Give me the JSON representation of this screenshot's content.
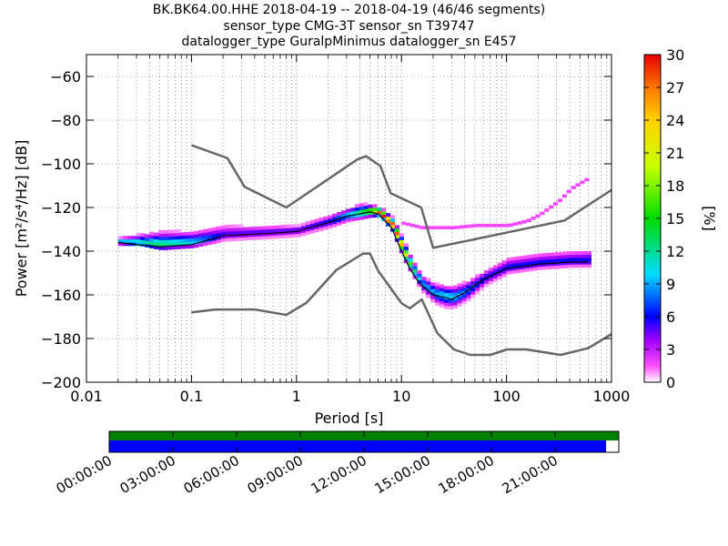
{
  "title": {
    "line1": "BK.BK64.00.HHE   2018-04-19 -- 2018-04-19  (46/46 segments)",
    "line2": "sensor_type CMG-3T sensor_sn T39747",
    "line3": "datalogger_type GuralpMinimus datalogger_sn E457"
  },
  "chart_data": [
    {
      "type": "heatmap",
      "description_kind": "probabilistic power spectral density",
      "xlabel": "Period [s]",
      "ylabel": "Power [m²/s⁴/Hz] [dB]",
      "xscale": "log",
      "xlim": [
        0.01,
        1000
      ],
      "ylim": [
        -200,
        -50
      ],
      "x_ticks": [
        0.01,
        0.1,
        1,
        10,
        100,
        1000
      ],
      "x_tick_labels": [
        "0.01",
        "0.1",
        "1",
        "10",
        "100",
        "1000"
      ],
      "y_ticks": [
        -200,
        -180,
        -160,
        -140,
        -120,
        -100,
        -80,
        -60
      ],
      "y_tick_labels": [
        "−200",
        "−180",
        "−160",
        "−140",
        "−120",
        "−100",
        "−80",
        "−60"
      ],
      "grid": true,
      "colorbar": {
        "label": "[%]",
        "range": [
          0,
          30
        ],
        "ticks": [
          0,
          3,
          6,
          9,
          12,
          15,
          18,
          21,
          24,
          27,
          30
        ],
        "tick_labels": [
          "0",
          "3",
          "6",
          "9",
          "12",
          "15",
          "18",
          "21",
          "24",
          "27",
          "30"
        ],
        "colormap": "pqlx"
      },
      "density_band": {
        "period": [
          0.02,
          0.03,
          0.05,
          0.1,
          0.2,
          0.5,
          1,
          2,
          3,
          4,
          5,
          6,
          8,
          10,
          12,
          15,
          20,
          25,
          30,
          40,
          60,
          100,
          200,
          400,
          600
        ],
        "lower": [
          -139,
          -139,
          -141,
          -140,
          -137,
          -136,
          -135,
          -131,
          -128,
          -127,
          -126,
          -126,
          -133,
          -145,
          -152,
          -160,
          -166,
          -168,
          -168,
          -165,
          -158,
          -152,
          -150,
          -149,
          -149
        ],
        "mode": [
          -136,
          -137,
          -138,
          -137,
          -133,
          -132,
          -131,
          -127,
          -124,
          -123,
          -122,
          -123,
          -129,
          -140,
          -148,
          -155,
          -160,
          -161,
          -162,
          -159,
          -153,
          -148,
          -146,
          -145,
          -145
        ],
        "upper": [
          -134,
          -132,
          -130,
          -130,
          -127,
          -128,
          -128,
          -123,
          -120,
          -118,
          -119,
          -120,
          -125,
          -135,
          -143,
          -151,
          -154,
          -155,
          -155,
          -153,
          -148,
          -142,
          -140,
          -139,
          -138
        ],
        "peak_percent": [
          9,
          12,
          13,
          10,
          5,
          5,
          5,
          6,
          10,
          14,
          18,
          30,
          30,
          24,
          15,
          9,
          9,
          10,
          10,
          8,
          6,
          6,
          6,
          6,
          6
        ]
      },
      "outlier_branch": {
        "period": [
          10,
          15,
          20,
          30,
          50,
          80,
          100,
          150,
          200,
          300,
          400,
          600
        ],
        "power": [
          -128,
          -130,
          -130,
          -130,
          -129,
          -129,
          -129,
          -127,
          -124,
          -118,
          -112,
          -107
        ]
      },
      "noise_models": {
        "high_noise_model": {
          "period": [
            0.1,
            0.22,
            0.32,
            0.8,
            3.8,
            4.6,
            6.3,
            7.9,
            15.4,
            20,
            354.8,
            1000
          ],
          "power": [
            -91.5,
            -97.4,
            -110.5,
            -120,
            -98,
            -96.5,
            -101,
            -113.5,
            -120,
            -138.5,
            -126,
            -112
          ]
        },
        "low_noise_model": {
          "period": [
            0.1,
            0.17,
            0.4,
            0.8,
            1.24,
            2.4,
            4.3,
            5,
            6,
            10,
            12,
            15.6,
            21.9,
            31.6,
            45,
            70,
            101,
            154,
            328,
            600,
            1000
          ],
          "power": [
            -168,
            -166.7,
            -166.7,
            -169.2,
            -163.7,
            -148.6,
            -141.1,
            -141.1,
            -149,
            -163.8,
            -166.2,
            -162.1,
            -177.5,
            -185,
            -187.5,
            -187.5,
            -185,
            -185,
            -187.5,
            -184.4,
            -178
          ]
        }
      }
    },
    {
      "type": "timeline",
      "description_kind": "data coverage",
      "tick_labels": [
        "00:00:00",
        "03:00:00",
        "06:00:00",
        "09:00:00",
        "12:00:00",
        "15:00:00",
        "18:00:00",
        "21:00:00"
      ],
      "tick_hours": [
        0,
        3,
        6,
        9,
        12,
        15,
        18,
        21
      ],
      "range_hours": [
        0,
        24
      ],
      "segments": [
        {
          "name": "data",
          "color": "#008000",
          "start_hour": 0,
          "end_hour": 24
        },
        {
          "name": "psd",
          "color": "#0000ff",
          "start_hour": 0,
          "end_hour": 23.4
        }
      ]
    }
  ],
  "colors": {
    "noise_model": "#666666",
    "mode_line": "#000000"
  }
}
